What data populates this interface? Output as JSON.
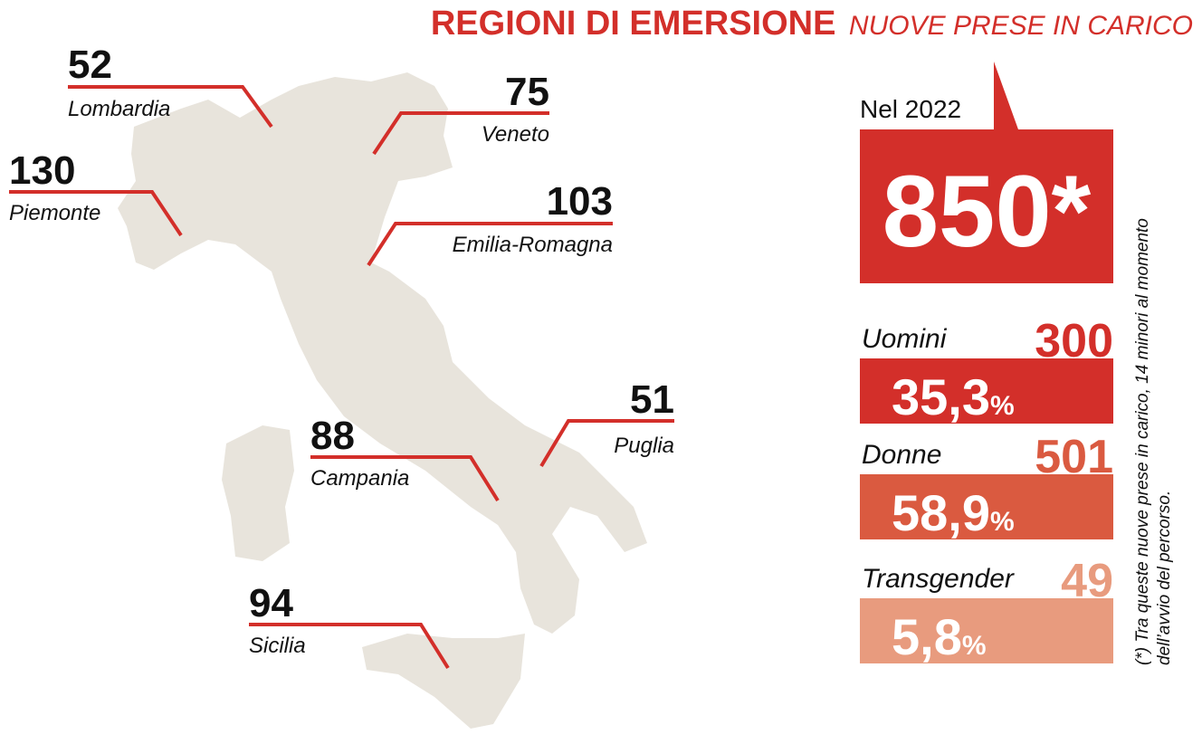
{
  "header": {
    "title": "REGIONI DI EMERSIONE",
    "subtitle": "NUOVE PRESE IN CARICO"
  },
  "regions": [
    {
      "value": 52,
      "name": "Lombardia"
    },
    {
      "value": 75,
      "name": "Veneto"
    },
    {
      "value": 130,
      "name": "Piemonte"
    },
    {
      "value": 103,
      "name": "Emilia-Romagna"
    },
    {
      "value": 51,
      "name": "Puglia"
    },
    {
      "value": 88,
      "name": "Campania"
    },
    {
      "value": 94,
      "name": "Sicilia"
    }
  ],
  "total": {
    "label": "Nel 2022",
    "value": "850*"
  },
  "breakdown": [
    {
      "label": "Uomini",
      "value": 300,
      "share": "35,3",
      "share_unit": "%"
    },
    {
      "label": "Donne",
      "value": 501,
      "share": "58,9",
      "share_unit": "%"
    },
    {
      "label": "Transgender",
      "value": 49,
      "share": "5,8",
      "share_unit": "%"
    }
  ],
  "note": {
    "line1": "(*) Tra queste nuove prese in carico, 14 minori al momento",
    "line2": "dell’avvio del percorso."
  }
}
